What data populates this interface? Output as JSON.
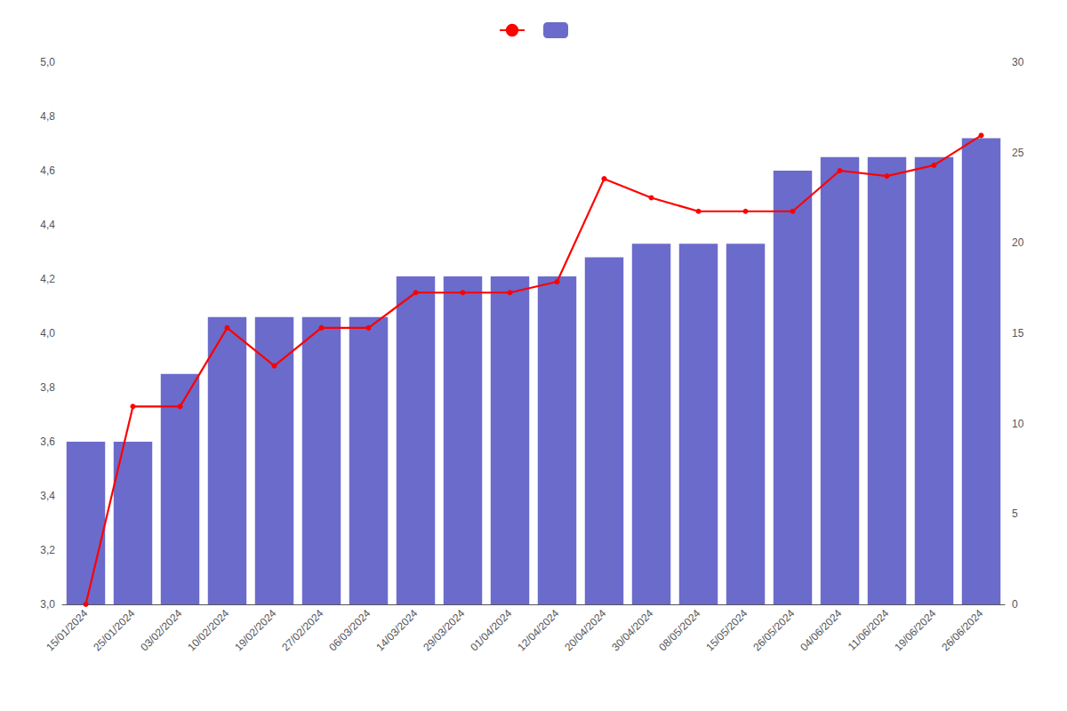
{
  "chart_data": {
    "type": "bar",
    "categories": [
      "15/01/2024",
      "25/01/2024",
      "03/02/2024",
      "10/02/2024",
      "19/02/2024",
      "27/02/2024",
      "06/03/2024",
      "14/03/2024",
      "29/03/2024",
      "01/04/2024",
      "12/04/2024",
      "20/04/2024",
      "30/04/2024",
      "08/05/2024",
      "15/05/2024",
      "26/05/2024",
      "04/06/2024",
      "11/06/2024",
      "19/06/2024",
      "26/06/2024"
    ],
    "series": [
      {
        "type": "bar",
        "color": "#6B6BCC",
        "values": [
          3.6,
          3.6,
          3.85,
          4.06,
          4.06,
          4.06,
          4.06,
          4.21,
          4.21,
          4.21,
          4.21,
          4.28,
          4.33,
          4.33,
          4.33,
          4.6,
          4.65,
          4.65,
          4.65,
          4.72
        ]
      },
      {
        "type": "line",
        "color": "#ff0000",
        "marker": "circle",
        "values": [
          3.0,
          3.73,
          3.73,
          4.02,
          3.88,
          4.02,
          4.02,
          4.15,
          4.15,
          4.15,
          4.19,
          4.57,
          4.5,
          4.45,
          4.45,
          4.45,
          4.6,
          4.58,
          4.62,
          4.73
        ]
      }
    ],
    "ylim": [
      3.0,
      5.0
    ],
    "yticks": [
      {
        "value": 3.0,
        "label": "3,0"
      },
      {
        "value": 3.2,
        "label": "3,2"
      },
      {
        "value": 3.4,
        "label": "3,4"
      },
      {
        "value": 3.6,
        "label": "3,6"
      },
      {
        "value": 3.8,
        "label": "3,8"
      },
      {
        "value": 4.0,
        "label": "4,0"
      },
      {
        "value": 4.2,
        "label": "4,2"
      },
      {
        "value": 4.4,
        "label": "4,4"
      },
      {
        "value": 4.6,
        "label": "4,6"
      },
      {
        "value": 4.8,
        "label": "4,8"
      },
      {
        "value": 5.0,
        "label": "5,0"
      }
    ],
    "y2lim": [
      0,
      30
    ],
    "y2ticks": [
      0,
      5,
      10,
      15,
      20,
      25,
      30
    ],
    "grid": false,
    "legend": "top"
  }
}
